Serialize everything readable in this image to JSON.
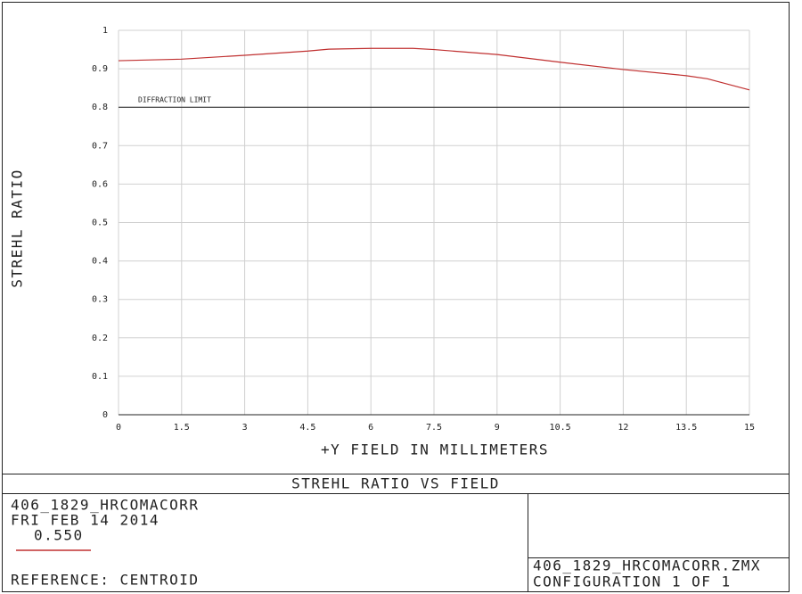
{
  "chart_data": {
    "type": "line",
    "title": "STREHL RATIO VS FIELD",
    "x_label": "+Y FIELD IN MILLIMETERS",
    "y_label": "STREHL RATIO",
    "x": [
      0,
      1.5,
      3,
      4.5,
      5,
      6,
      7,
      7.5,
      9,
      10.5,
      12,
      13.5,
      14,
      15
    ],
    "series": [
      {
        "name": "0.550",
        "color": "#c03030",
        "values": [
          0.921,
          0.925,
          0.935,
          0.946,
          0.951,
          0.953,
          0.953,
          0.95,
          0.937,
          0.917,
          0.898,
          0.882,
          0.874,
          0.845
        ]
      }
    ],
    "xlim": [
      0,
      15
    ],
    "xticks": [
      0,
      1.5,
      3,
      4.5,
      6,
      7.5,
      9,
      10.5,
      12,
      13.5,
      15
    ],
    "ylim": [
      0,
      1
    ],
    "yticks": [
      0,
      0.1,
      0.2,
      0.3,
      0.4,
      0.5,
      0.6,
      0.7,
      0.8,
      0.9,
      1
    ],
    "grid": true,
    "reference_line": {
      "label": "DIFFRACTION LIMIT",
      "value": 0.8
    }
  },
  "footer": {
    "lens": "406_1829_HRCOMACORR",
    "date": "FRI FEB 14 2014",
    "reference": "REFERENCE: CENTROID",
    "file": "406_1829_HRCOMACORR.ZMX",
    "configuration": "CONFIGURATION 1 OF 1"
  }
}
